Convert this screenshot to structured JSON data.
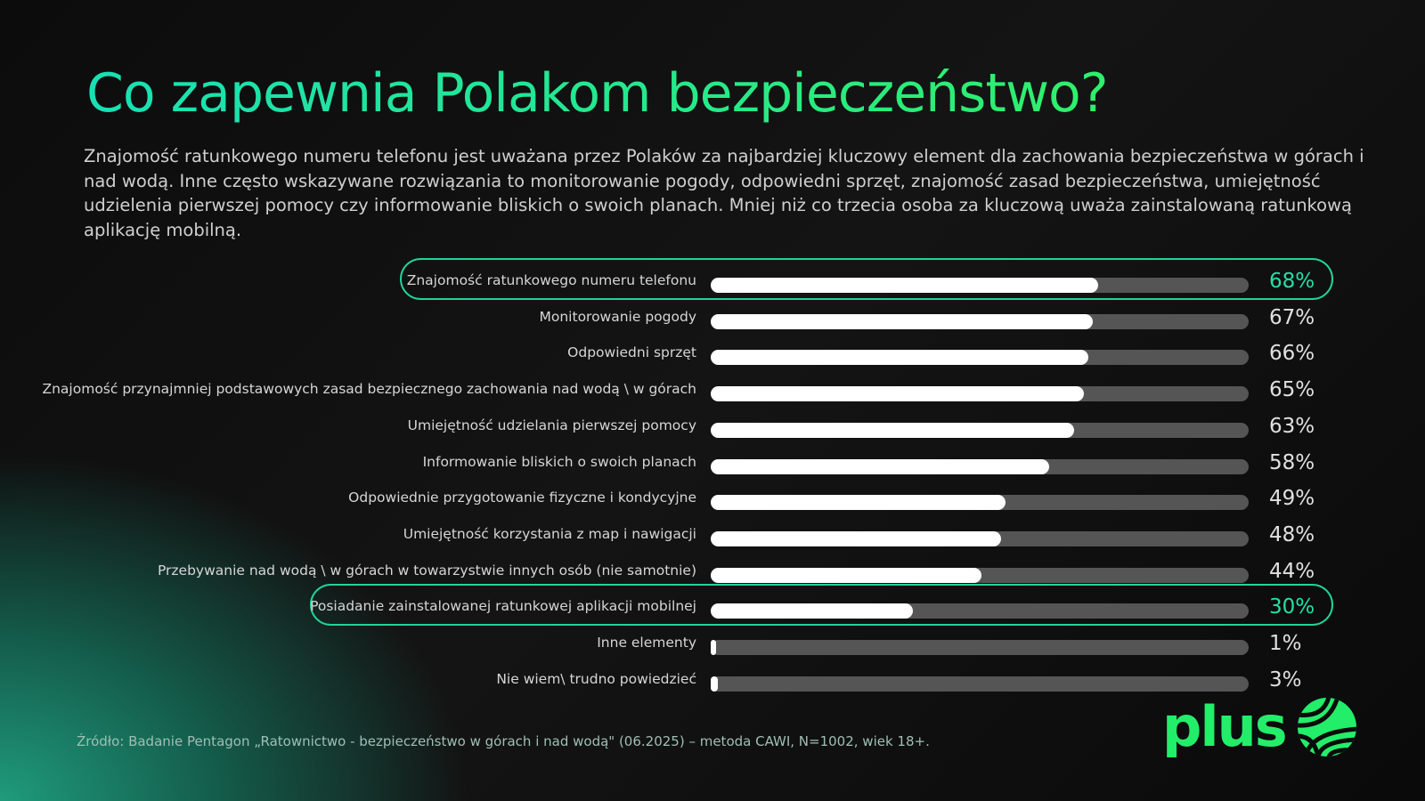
{
  "title": "Co zapewnia Polakom bezpieczeństwo?",
  "intro": "Znajomość ratunkowego numeru telefonu jest uważana przez Polaków za najbardziej kluczowy element dla zachowania bezpieczeństwa w górach i nad wodą. Inne często wskazywane rozwiązania to monitorowanie pogody, odpowiedni sprzęt, znajomość zasad bezpieczeństwa, umiejętność udzielenia pierwszej pomocy czy informowanie bliskich o swoich planach. Mniej niż co trzecia osoba za kluczową uważa zainstalowaną ratunkową aplikację mobilną.",
  "chart_data": {
    "type": "bar",
    "orientation": "horizontal",
    "unit": "%",
    "xlim": [
      0,
      100
    ],
    "grid": false,
    "colors": {
      "fill": "#ffffff",
      "track": "#555555",
      "highlight": "#22d39a"
    },
    "categories": [
      "Znajomość ratunkowego numeru telefonu",
      "Monitorowanie pogody",
      "Odpowiedni sprzęt",
      "Znajomość przynajmniej podstawowych zasad bezpiecznego zachowania nad wodą \\ w górach",
      "Umiejętność udzielania pierwszej pomocy",
      "Informowanie bliskich o swoich planach",
      "Odpowiednie przygotowanie fizyczne i kondycyjne",
      "Umiejętność korzystania z map i nawigacji",
      "Przebywanie nad wodą \\ w górach w towarzystwie innych osób (nie samotnie)",
      "Posiadanie zainstalowanej ratunkowej aplikacji mobilnej",
      "Inne elementy",
      "Nie wiem\\ trudno powiedzieć"
    ],
    "values": [
      68,
      67,
      66,
      65,
      63,
      58,
      49,
      48,
      44,
      30,
      1,
      3
    ],
    "labels": [
      "68%",
      "67%",
      "66%",
      "65%",
      "63%",
      "58%",
      "49%",
      "48%",
      "44%",
      "30%",
      "1%",
      "3%"
    ],
    "highlighted": [
      0,
      9
    ]
  },
  "source": "Źródło: Badanie Pentagon „Ratownictwo - bezpieczeństwo w górach i nad wodą\" (06.2025) – metoda CAWI, N=1002, wiek 18+.",
  "logo": {
    "text": "plus",
    "color": "#22ee6a"
  }
}
